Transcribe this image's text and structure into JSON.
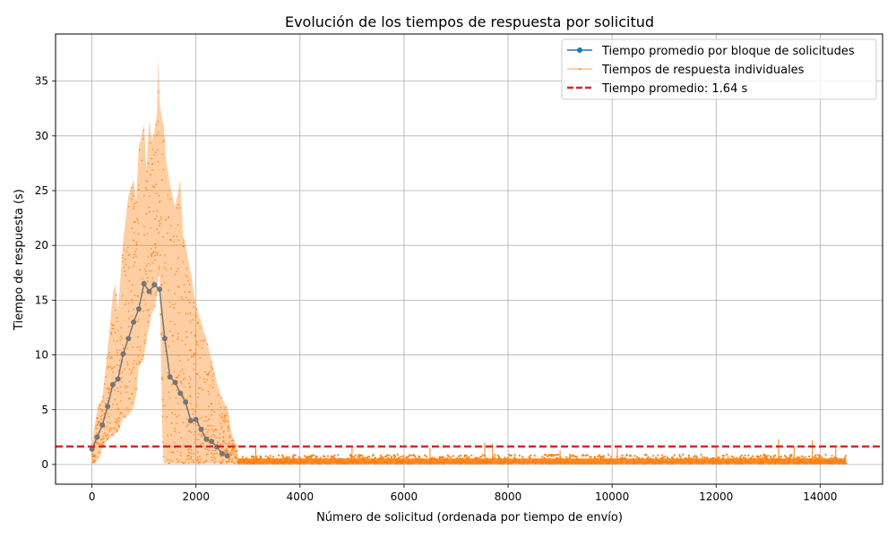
{
  "chart_data": {
    "type": "line",
    "title": "Evolución de los tiempos de respuesta por solicitud",
    "xlabel": "Número de solicitud (ordenada por tiempo de envío)",
    "ylabel": "Tiempo de respuesta (s)",
    "xlim": [
      -700,
      15200
    ],
    "ylim": [
      -1.8,
      39.3
    ],
    "xticks": [
      0,
      2000,
      4000,
      6000,
      8000,
      10000,
      12000,
      14000
    ],
    "yticks": [
      0,
      5,
      10,
      15,
      20,
      25,
      30,
      35
    ],
    "grid": true,
    "legend_position": "top-right",
    "colors": {
      "average": "#1f77b4",
      "individual": "#ff7f0e",
      "mean_line": "#d62728",
      "grid": "#b0b0b0"
    },
    "legend": [
      "Tiempo promedio por bloque de solicitudes",
      "Tiempos de respuesta individuales",
      "Tiempo promedio: 1.64 s"
    ],
    "series": [
      {
        "name": "Tiempo promedio por bloque de solicitudes",
        "style": "line-marker",
        "x": [
          0,
          100,
          200,
          300,
          400,
          500,
          600,
          700,
          800,
          900,
          1000,
          1100,
          1200,
          1300,
          1400,
          1500,
          1600,
          1700,
          1800,
          1900,
          2000,
          2100,
          2200,
          2300,
          2400,
          2500,
          2600
        ],
        "values": [
          1.4,
          2.5,
          3.6,
          5.3,
          7.3,
          7.8,
          10.1,
          11.5,
          13.0,
          14.2,
          16.5,
          15.8,
          16.4,
          16.0,
          11.5,
          8.0,
          7.5,
          6.5,
          5.7,
          4.0,
          4.1,
          3.2,
          2.3,
          2.1,
          1.6,
          1.0,
          0.8
        ]
      },
      {
        "name": "Tiempos de respuesta individuales",
        "style": "line-small-marker",
        "envelope_x": [
          0,
          50,
          100,
          150,
          200,
          300,
          400,
          450,
          500,
          600,
          700,
          800,
          850,
          900,
          1000,
          1050,
          1100,
          1150,
          1200,
          1250,
          1275,
          1300,
          1350,
          1380,
          1420,
          1500,
          1600,
          1700,
          1750,
          1800,
          1900,
          2000,
          2100,
          2200,
          2300,
          2400,
          2500,
          2600,
          2700,
          2800
        ],
        "envelope_max": [
          1.8,
          3.5,
          4.8,
          5.7,
          6.0,
          10.5,
          15.5,
          16.5,
          14.0,
          20.5,
          24.5,
          26.0,
          24.0,
          29.0,
          31.0,
          27.0,
          31.5,
          29.5,
          30.5,
          32.0,
          37.4,
          33.0,
          31.5,
          31.0,
          28.0,
          25.5,
          23.5,
          26.0,
          21.0,
          20.0,
          17.5,
          14.5,
          13.0,
          11.5,
          9.5,
          7.5,
          6.0,
          5.2,
          2.5,
          1.5
        ],
        "envelope_min": [
          0.2,
          0.1,
          0.3,
          0.8,
          1.5,
          2.3,
          2.6,
          2.9,
          3.0,
          4.2,
          4.5,
          5.2,
          6.3,
          9.0,
          9.8,
          11.5,
          12.5,
          13.8,
          14.2,
          15.5,
          17.0,
          17.5,
          3.0,
          0.1,
          0.1,
          0.1,
          0.1,
          0.1,
          0.1,
          0.1,
          0.1,
          0.1,
          0.1,
          0.1,
          0.1,
          0.1,
          0.1,
          0.1,
          0.1,
          0.1
        ],
        "tail_x_range": [
          2800,
          14500
        ],
        "tail_typical_range": [
          0.1,
          0.9
        ],
        "tail_spikes": [
          [
            3150,
            1.5
          ],
          [
            5000,
            1.6
          ],
          [
            6500,
            1.5
          ],
          [
            7550,
            2.0
          ],
          [
            7700,
            1.9
          ],
          [
            9000,
            1.3
          ],
          [
            10100,
            1.5
          ],
          [
            12000,
            1.6
          ],
          [
            13200,
            2.3
          ],
          [
            13500,
            1.7
          ],
          [
            13850,
            2.2
          ],
          [
            14300,
            1.5
          ]
        ]
      },
      {
        "name": "Tiempo promedio: 1.64 s",
        "style": "dashed-hline",
        "y": 1.64
      }
    ]
  }
}
